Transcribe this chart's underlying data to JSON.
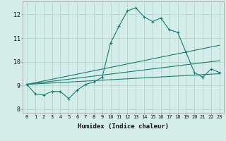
{
  "xlabel": "Humidex (Indice chaleur)",
  "background_color": "#d4ede8",
  "grid_color": "#b8d8d2",
  "line_color": "#1a7a6e",
  "xlim": [
    -0.5,
    23.5
  ],
  "ylim": [
    7.85,
    12.55
  ],
  "yticks": [
    8,
    9,
    10,
    11,
    12
  ],
  "xticks": [
    0,
    1,
    2,
    3,
    4,
    5,
    6,
    7,
    8,
    9,
    10,
    11,
    12,
    13,
    14,
    15,
    16,
    17,
    18,
    19,
    20,
    21,
    22,
    23
  ],
  "series1_x": [
    0,
    1,
    2,
    3,
    4,
    5,
    6,
    7,
    8,
    9,
    10,
    11,
    12,
    13,
    14,
    15,
    16,
    17,
    18,
    19,
    20,
    21,
    22,
    23
  ],
  "series1_y": [
    9.05,
    8.65,
    8.6,
    8.75,
    8.75,
    8.45,
    8.8,
    9.05,
    9.15,
    9.35,
    10.8,
    11.5,
    12.15,
    12.28,
    11.9,
    11.7,
    11.85,
    11.35,
    11.25,
    10.4,
    9.55,
    9.35,
    9.7,
    9.55
  ],
  "series2_x": [
    0,
    23
  ],
  "series2_y": [
    9.05,
    10.7
  ],
  "series3_x": [
    0,
    23
  ],
  "series3_y": [
    9.05,
    10.05
  ],
  "series4_x": [
    0,
    23
  ],
  "series4_y": [
    9.05,
    9.5
  ]
}
